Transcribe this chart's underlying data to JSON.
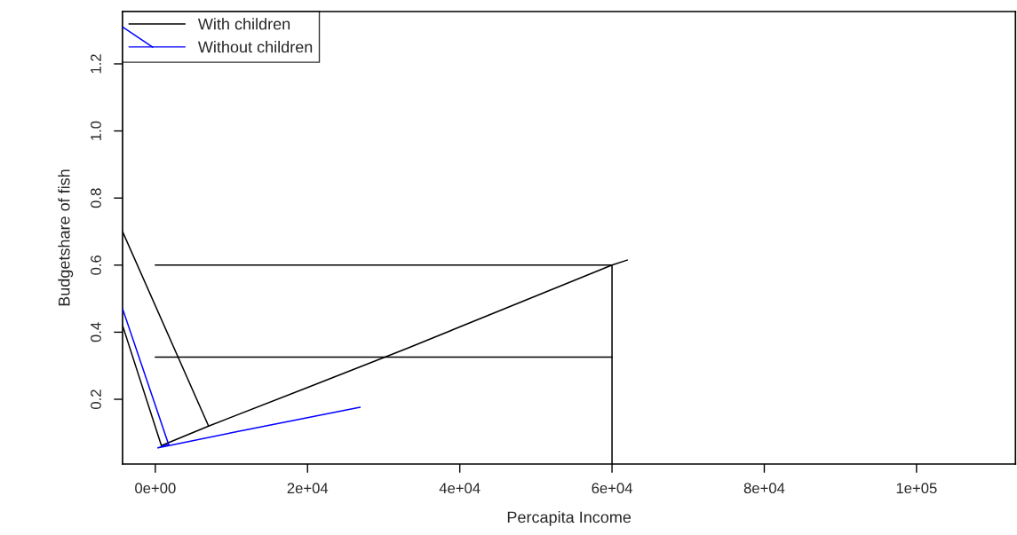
{
  "chart_data": {
    "type": "line",
    "xlabel": "Percapita Income",
    "ylabel": "Budgetshare of fish",
    "xlim": [
      -4300,
      113000
    ],
    "ylim": [
      0.007,
      1.356
    ],
    "xticks": [
      {
        "value": 0,
        "label": "0e+00"
      },
      {
        "value": 20000,
        "label": "2e+04"
      },
      {
        "value": 40000,
        "label": "4e+04"
      },
      {
        "value": 60000,
        "label": "6e+04"
      },
      {
        "value": 80000,
        "label": "8e+04"
      },
      {
        "value": 100000,
        "label": "1e+05"
      }
    ],
    "yticks": [
      {
        "value": 0.2,
        "label": "0.2"
      },
      {
        "value": 0.4,
        "label": "0.4"
      },
      {
        "value": 0.6,
        "label": "0.6"
      },
      {
        "value": 0.8,
        "label": "0.8"
      },
      {
        "value": 1.0,
        "label": "1.0"
      },
      {
        "value": 1.2,
        "label": "1.2"
      }
    ],
    "series": [
      {
        "name": "With children",
        "color": "#000000",
        "line_style": "solid",
        "x": [
          -4300,
          800,
          7000,
          20000,
          33200,
          60000,
          62000
        ],
        "values": [
          0.42,
          0.062,
          0.12,
          0.235,
          0.353,
          0.6,
          0.615
        ]
      },
      {
        "name": "Without children",
        "color": "#0000ff",
        "line_style": "solid",
        "x": [
          -4300,
          -350,
          null,
          -4300,
          1750,
          350,
          10000,
          20000,
          26900
        ],
        "values": [
          1.31,
          1.25,
          null,
          0.47,
          0.065,
          0.055,
          0.1,
          0.145,
          0.176
        ]
      },
      {
        "color": "#000000",
        "line_style": "solid",
        "x": [
          -4300,
          7000
        ],
        "values": [
          0.7,
          0.12
        ]
      },
      {
        "color": "#000000",
        "line_style": "solid",
        "x": [
          0,
          60000,
          60000
        ],
        "values": [
          0.6,
          0.6,
          0.007
        ]
      },
      {
        "color": "#000000",
        "line_style": "solid",
        "x": [
          0,
          60000
        ],
        "values": [
          0.326,
          0.326
        ]
      }
    ],
    "legend": "top left",
    "grid": false
  }
}
